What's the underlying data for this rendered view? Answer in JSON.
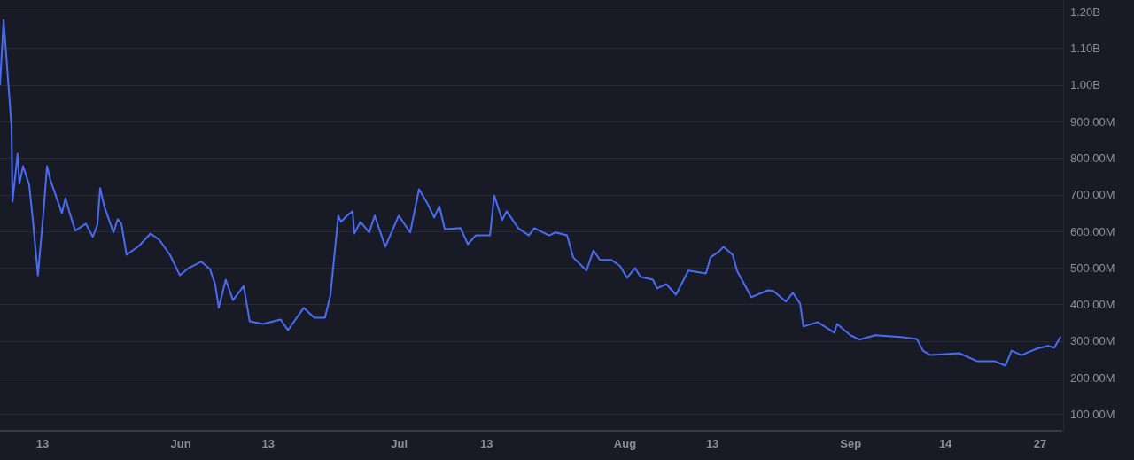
{
  "chart_data": {
    "type": "line",
    "x": [
      "--05-07T04:00",
      "--05-07T16:00",
      "--05-08T18:00",
      "--05-08T21:00",
      "--05-09T14:00",
      "--05-09T20:00",
      "--05-10T08:00",
      "--05-11T04:00",
      "--05-11T16:00",
      "--05-12T09:00",
      "--05-13T03:00",
      "--05-13T15:00",
      "--05-14T02:00",
      "--05-15T16:00",
      "--05-16T04:00",
      "--05-16T16:00",
      "--05-17T12:00",
      "--05-18T23:00",
      "--05-19T22:00",
      "--05-20T13:00",
      "--05-20T22:00",
      "--05-21T12:00",
      "--05-22T18:00",
      "--05-23T08:00",
      "--05-23T20:00",
      "--05-24T13:00",
      "--05-26T06:00",
      "--05-27T20:00",
      "--05-29T01:00",
      "--05-30T12:00",
      "--05-31T21:00",
      "--06-02T02:00",
      "--06-03T19:00",
      "--06-05T00:00",
      "--06-05T17:00",
      "--06-06T05:00",
      "--06-07T04:00",
      "--06-08T04:00",
      "--06-08T18:00",
      "--06-09T15:00",
      "--06-10T11:00",
      "--06-12T07:00",
      "--06-14T17:00",
      "--06-15T17:00",
      "--06-17T21:00",
      "--06-19T08:00",
      "--06-20T19:00",
      "--06-21T13:00",
      "--06-22T15:00",
      "--06-23T00:00",
      "--06-23T20:00",
      "--06-24T14:00",
      "--06-24T20:00",
      "--06-25T16:00",
      "--06-26T21:00",
      "--06-27T15:00",
      "--06-29T02:00",
      "--06-30T22:00",
      "--07-02T12:00",
      "--07-03T17:00",
      "--07-04T19:00",
      "--07-05T19:00",
      "--07-06T12:00",
      "--07-07T06:00",
      "--07-09T10:00",
      "--07-10T10:00",
      "--07-11T12:00",
      "--07-13T11:00",
      "--07-14T01:00",
      "--07-15T03:00",
      "--07-15T18:00",
      "--07-17T08:00",
      "--07-18T19:00",
      "--07-19T13:00",
      "--07-21T14:00",
      "--07-22T11:00",
      "--07-24T01:00",
      "--07-24T21:00",
      "--07-26T17:00",
      "--07-27T16:00",
      "--07-28T13:00",
      "--07-30T03:00",
      "--07-31T08:00",
      "--08-01T07:00",
      "--08-02T09:00",
      "--08-03T03:00",
      "--08-04T20:00",
      "--08-05T10:00",
      "--08-06T16:00",
      "--08-08T00:00",
      "--08-09T17:00",
      "--08-12T03:00",
      "--08-12T18:00",
      "--08-13T23:00",
      "--08-14T13:00",
      "--08-15T19:00",
      "--08-16T09:00",
      "--08-17T09:00",
      "--08-18T08:00",
      "--08-20T15:00",
      "--08-21T09:00",
      "--08-23T02:00",
      "--08-24T01:00",
      "--08-25T01:00",
      "--08-25T12:00",
      "--08-27T11:00",
      "--08-29T18:00",
      "--08-30T03:00",
      "--08-31T23:00",
      "--09-02T04:00",
      "--09-04T09:00",
      "--09-07T21:00",
      "--09-10T02:00",
      "--09-10T22:00",
      "--09-11T22:00",
      "--09-15T22:00",
      "--09-18T09:00",
      "--09-20T19:00",
      "--09-22T06:00",
      "--09-23T02:00",
      "--09-24T11:00",
      "--09-26T12:00",
      "--09-28T02:00",
      "--09-28T23:00",
      "--09-29T19:00"
    ],
    "series": [
      {
        "color": "#4b6bf5",
        "values": [
          1001000000,
          1178000000,
          885000000,
          681000000,
          812000000,
          730000000,
          778000000,
          728000000,
          633000000,
          480000000,
          650000000,
          778000000,
          740000000,
          650000000,
          691000000,
          655000000,
          602000000,
          621000000,
          585000000,
          618000000,
          718000000,
          667000000,
          597000000,
          633000000,
          621000000,
          536000000,
          560000000,
          594000000,
          577000000,
          536000000,
          480000000,
          500000000,
          517000000,
          497000000,
          456000000,
          391000000,
          468000000,
          412000000,
          427000000,
          451000000,
          354000000,
          347000000,
          359000000,
          330000000,
          391000000,
          364000000,
          364000000,
          425000000,
          643000000,
          626000000,
          643000000,
          655000000,
          594000000,
          626000000,
          597000000,
          643000000,
          558000000,
          643000000,
          597000000,
          715000000,
          679000000,
          638000000,
          669000000,
          606000000,
          609000000,
          565000000,
          589000000,
          589000000,
          698000000,
          631000000,
          655000000,
          609000000,
          589000000,
          609000000,
          589000000,
          597000000,
          589000000,
          529000000,
          493000000,
          548000000,
          522000000,
          522000000,
          505000000,
          473000000,
          500000000,
          476000000,
          468000000,
          444000000,
          456000000,
          427000000,
          493000000,
          485000000,
          529000000,
          546000000,
          558000000,
          536000000,
          493000000,
          456000000,
          420000000,
          439000000,
          437000000,
          408000000,
          432000000,
          403000000,
          340000000,
          352000000,
          323000000,
          347000000,
          316000000,
          304000000,
          316000000,
          311000000,
          306000000,
          274000000,
          262000000,
          267000000,
          245000000,
          245000000,
          233000000,
          274000000,
          262000000,
          279000000,
          287000000,
          282000000,
          311000000
        ]
      }
    ],
    "xlim": [
      "--05-07T04:00",
      "--09-30T04:00"
    ],
    "xticks": [
      {
        "value": "--05-13",
        "label": "13"
      },
      {
        "value": "--06-01",
        "label": "Jun"
      },
      {
        "value": "--06-13",
        "label": "13"
      },
      {
        "value": "--07-01",
        "label": "Jul"
      },
      {
        "value": "--07-13",
        "label": "13"
      },
      {
        "value": "--08-01",
        "label": "Aug"
      },
      {
        "value": "--08-13",
        "label": "13"
      },
      {
        "value": "--09-01",
        "label": "Sep"
      },
      {
        "value": "--09-14",
        "label": "14"
      },
      {
        "value": "--09-27",
        "label": "27"
      }
    ],
    "ylim": [
      55000000,
      1230000000
    ],
    "yticks": [
      {
        "value": 100000000,
        "label": "100.00M"
      },
      {
        "value": 200000000,
        "label": "200.00M"
      },
      {
        "value": 300000000,
        "label": "300.00M"
      },
      {
        "value": 400000000,
        "label": "400.00M"
      },
      {
        "value": 500000000,
        "label": "500.00M"
      },
      {
        "value": 600000000,
        "label": "600.00M"
      },
      {
        "value": 700000000,
        "label": "700.00M"
      },
      {
        "value": 800000000,
        "label": "800.00M"
      },
      {
        "value": 900000000,
        "label": "900.00M"
      },
      {
        "value": 1000000000,
        "label": "1.00B"
      },
      {
        "value": 1100000000,
        "label": "1.10B"
      },
      {
        "value": 1200000000,
        "label": "1.20B"
      }
    ],
    "grid": "y",
    "marker": "none",
    "line_style": "solid"
  }
}
